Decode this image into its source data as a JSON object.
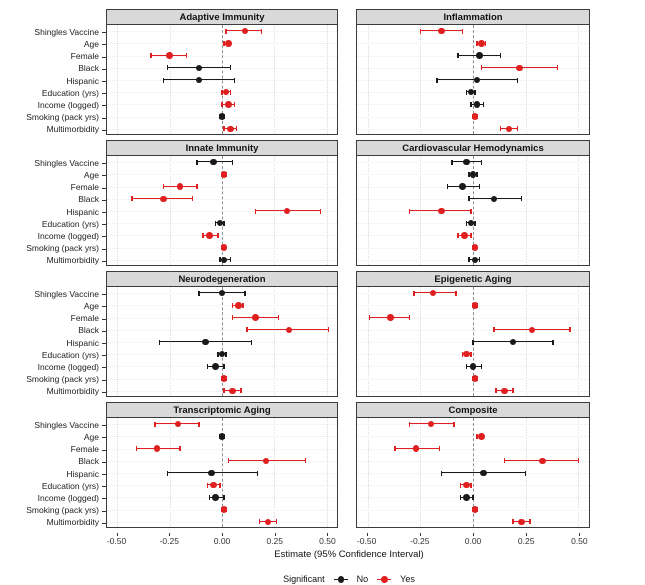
{
  "chart_data": {
    "type": "scatter",
    "subtype": "faceted-forest-plot-pointrange",
    "facet_grid": {
      "rows": 4,
      "cols": 2
    },
    "xlabel": "Estimate (95% Confidence Interval)",
    "x_ticks": [
      -0.5,
      -0.25,
      0.0,
      0.25,
      0.5
    ],
    "x_tick_labels": [
      "-0.50",
      "-0.25",
      "0.00",
      "0.25",
      "0.50"
    ],
    "xlim": [
      -0.55,
      0.55
    ],
    "zero_reference_line": 0,
    "grid": true,
    "legend": {
      "position": "bottom",
      "title": "Significant",
      "items": [
        {
          "label": "No",
          "color": "#1a1a1a"
        },
        {
          "label": "Yes",
          "color": "#e02020"
        }
      ]
    },
    "colors": {
      "significant_no": "#1a1a1a",
      "significant_yes": "#e02020",
      "panel_header_bg": "#d9d9d9",
      "panel_border": "#3c3c3c",
      "zero_line": "#8f8f8f",
      "grid_line": "#dcdcdc"
    },
    "predictors": [
      "Shingles Vaccine",
      "Age",
      "Female",
      "Black",
      "Hispanic",
      "Education (yrs)",
      "Income (logged)",
      "Smoking (pack yrs)",
      "Multimorbidity"
    ],
    "panels": [
      {
        "title": "Adaptive Immunity",
        "points": [
          {
            "predictor": "Shingles Vaccine",
            "estimate": 0.11,
            "lo": 0.02,
            "hi": 0.19,
            "significant": "Yes"
          },
          {
            "predictor": "Age",
            "estimate": 0.03,
            "lo": 0.01,
            "hi": 0.04,
            "significant": "Yes"
          },
          {
            "predictor": "Female",
            "estimate": -0.25,
            "lo": -0.34,
            "hi": -0.17,
            "significant": "Yes"
          },
          {
            "predictor": "Black",
            "estimate": -0.11,
            "lo": -0.26,
            "hi": 0.04,
            "significant": "No"
          },
          {
            "predictor": "Hispanic",
            "estimate": -0.11,
            "lo": -0.28,
            "hi": 0.06,
            "significant": "No"
          },
          {
            "predictor": "Education (yrs)",
            "estimate": 0.02,
            "lo": 0.0,
            "hi": 0.04,
            "significant": "Yes"
          },
          {
            "predictor": "Income (logged)",
            "estimate": 0.03,
            "lo": 0.0,
            "hi": 0.06,
            "significant": "Yes"
          },
          {
            "predictor": "Smoking (pack yrs)",
            "estimate": 0.0,
            "lo": -0.01,
            "hi": 0.01,
            "significant": "No"
          },
          {
            "predictor": "Multimorbidity",
            "estimate": 0.04,
            "lo": 0.01,
            "hi": 0.07,
            "significant": "Yes"
          }
        ]
      },
      {
        "title": "Inflammation",
        "points": [
          {
            "predictor": "Shingles Vaccine",
            "estimate": -0.15,
            "lo": -0.25,
            "hi": -0.05,
            "significant": "Yes"
          },
          {
            "predictor": "Age",
            "estimate": 0.04,
            "lo": 0.02,
            "hi": 0.06,
            "significant": "Yes"
          },
          {
            "predictor": "Female",
            "estimate": 0.03,
            "lo": -0.07,
            "hi": 0.13,
            "significant": "No"
          },
          {
            "predictor": "Black",
            "estimate": 0.22,
            "lo": 0.04,
            "hi": 0.4,
            "significant": "Yes"
          },
          {
            "predictor": "Hispanic",
            "estimate": 0.02,
            "lo": -0.17,
            "hi": 0.21,
            "significant": "No"
          },
          {
            "predictor": "Education (yrs)",
            "estimate": -0.01,
            "lo": -0.03,
            "hi": 0.01,
            "significant": "No"
          },
          {
            "predictor": "Income (logged)",
            "estimate": 0.02,
            "lo": -0.01,
            "hi": 0.05,
            "significant": "No"
          },
          {
            "predictor": "Smoking (pack yrs)",
            "estimate": 0.01,
            "lo": 0.0,
            "hi": 0.02,
            "significant": "Yes"
          },
          {
            "predictor": "Multimorbidity",
            "estimate": 0.17,
            "lo": 0.13,
            "hi": 0.21,
            "significant": "Yes"
          }
        ]
      },
      {
        "title": "Innate Immunity",
        "points": [
          {
            "predictor": "Shingles Vaccine",
            "estimate": -0.04,
            "lo": -0.12,
            "hi": 0.05,
            "significant": "No"
          },
          {
            "predictor": "Age",
            "estimate": 0.01,
            "lo": 0.0,
            "hi": 0.02,
            "significant": "Yes"
          },
          {
            "predictor": "Female",
            "estimate": -0.2,
            "lo": -0.28,
            "hi": -0.12,
            "significant": "Yes"
          },
          {
            "predictor": "Black",
            "estimate": -0.28,
            "lo": -0.43,
            "hi": -0.14,
            "significant": "Yes"
          },
          {
            "predictor": "Hispanic",
            "estimate": 0.31,
            "lo": 0.16,
            "hi": 0.47,
            "significant": "Yes"
          },
          {
            "predictor": "Education (yrs)",
            "estimate": -0.01,
            "lo": -0.03,
            "hi": 0.01,
            "significant": "No"
          },
          {
            "predictor": "Income (logged)",
            "estimate": -0.06,
            "lo": -0.09,
            "hi": -0.02,
            "significant": "Yes"
          },
          {
            "predictor": "Smoking (pack yrs)",
            "estimate": 0.01,
            "lo": 0.0,
            "hi": 0.01,
            "significant": "Yes"
          },
          {
            "predictor": "Multimorbidity",
            "estimate": 0.01,
            "lo": -0.01,
            "hi": 0.04,
            "significant": "No"
          }
        ]
      },
      {
        "title": "Cardiovascular Hemodynamics",
        "points": [
          {
            "predictor": "Shingles Vaccine",
            "estimate": -0.03,
            "lo": -0.1,
            "hi": 0.04,
            "significant": "No"
          },
          {
            "predictor": "Age",
            "estimate": 0.0,
            "lo": -0.02,
            "hi": 0.02,
            "significant": "No"
          },
          {
            "predictor": "Female",
            "estimate": -0.05,
            "lo": -0.12,
            "hi": 0.03,
            "significant": "No"
          },
          {
            "predictor": "Black",
            "estimate": 0.1,
            "lo": -0.02,
            "hi": 0.23,
            "significant": "No"
          },
          {
            "predictor": "Hispanic",
            "estimate": -0.15,
            "lo": -0.3,
            "hi": -0.01,
            "significant": "Yes"
          },
          {
            "predictor": "Education (yrs)",
            "estimate": -0.01,
            "lo": -0.03,
            "hi": 0.01,
            "significant": "No"
          },
          {
            "predictor": "Income (logged)",
            "estimate": -0.04,
            "lo": -0.07,
            "hi": -0.01,
            "significant": "Yes"
          },
          {
            "predictor": "Smoking (pack yrs)",
            "estimate": 0.01,
            "lo": 0.0,
            "hi": 0.01,
            "significant": "Yes"
          },
          {
            "predictor": "Multimorbidity",
            "estimate": 0.01,
            "lo": -0.02,
            "hi": 0.03,
            "significant": "No"
          }
        ]
      },
      {
        "title": "Neurodegeneration",
        "points": [
          {
            "predictor": "Shingles Vaccine",
            "estimate": 0.0,
            "lo": -0.11,
            "hi": 0.11,
            "significant": "No"
          },
          {
            "predictor": "Age",
            "estimate": 0.08,
            "lo": 0.05,
            "hi": 0.1,
            "significant": "Yes"
          },
          {
            "predictor": "Female",
            "estimate": 0.16,
            "lo": 0.05,
            "hi": 0.27,
            "significant": "Yes"
          },
          {
            "predictor": "Black",
            "estimate": 0.32,
            "lo": 0.12,
            "hi": 0.51,
            "significant": "Yes"
          },
          {
            "predictor": "Hispanic",
            "estimate": -0.08,
            "lo": -0.3,
            "hi": 0.14,
            "significant": "No"
          },
          {
            "predictor": "Education (yrs)",
            "estimate": 0.0,
            "lo": -0.02,
            "hi": 0.02,
            "significant": "No"
          },
          {
            "predictor": "Income (logged)",
            "estimate": -0.03,
            "lo": -0.07,
            "hi": 0.01,
            "significant": "No"
          },
          {
            "predictor": "Smoking (pack yrs)",
            "estimate": 0.01,
            "lo": 0.0,
            "hi": 0.02,
            "significant": "Yes"
          },
          {
            "predictor": "Multimorbidity",
            "estimate": 0.05,
            "lo": 0.01,
            "hi": 0.09,
            "significant": "Yes"
          }
        ]
      },
      {
        "title": "Epigenetic Aging",
        "points": [
          {
            "predictor": "Shingles Vaccine",
            "estimate": -0.19,
            "lo": -0.28,
            "hi": -0.08,
            "significant": "Yes"
          },
          {
            "predictor": "Age",
            "estimate": 0.01,
            "lo": 0.0,
            "hi": 0.02,
            "significant": "Yes"
          },
          {
            "predictor": "Female",
            "estimate": -0.39,
            "lo": -0.49,
            "hi": -0.3,
            "significant": "Yes"
          },
          {
            "predictor": "Black",
            "estimate": 0.28,
            "lo": 0.1,
            "hi": 0.46,
            "significant": "Yes"
          },
          {
            "predictor": "Hispanic",
            "estimate": 0.19,
            "lo": 0.0,
            "hi": 0.38,
            "significant": "No"
          },
          {
            "predictor": "Education (yrs)",
            "estimate": -0.03,
            "lo": -0.05,
            "hi": -0.01,
            "significant": "Yes"
          },
          {
            "predictor": "Income (logged)",
            "estimate": 0.0,
            "lo": -0.03,
            "hi": 0.04,
            "significant": "No"
          },
          {
            "predictor": "Smoking (pack yrs)",
            "estimate": 0.01,
            "lo": 0.0,
            "hi": 0.02,
            "significant": "Yes"
          },
          {
            "predictor": "Multimorbidity",
            "estimate": 0.15,
            "lo": 0.11,
            "hi": 0.19,
            "significant": "Yes"
          }
        ]
      },
      {
        "title": "Transcriptomic Aging",
        "points": [
          {
            "predictor": "Shingles Vaccine",
            "estimate": -0.21,
            "lo": -0.32,
            "hi": -0.11,
            "significant": "Yes"
          },
          {
            "predictor": "Age",
            "estimate": 0.0,
            "lo": -0.01,
            "hi": 0.01,
            "significant": "No"
          },
          {
            "predictor": "Female",
            "estimate": -0.31,
            "lo": -0.41,
            "hi": -0.2,
            "significant": "Yes"
          },
          {
            "predictor": "Black",
            "estimate": 0.21,
            "lo": 0.03,
            "hi": 0.4,
            "significant": "Yes"
          },
          {
            "predictor": "Hispanic",
            "estimate": -0.05,
            "lo": -0.26,
            "hi": 0.17,
            "significant": "No"
          },
          {
            "predictor": "Education (yrs)",
            "estimate": -0.04,
            "lo": -0.07,
            "hi": -0.01,
            "significant": "Yes"
          },
          {
            "predictor": "Income (logged)",
            "estimate": -0.03,
            "lo": -0.06,
            "hi": 0.01,
            "significant": "No"
          },
          {
            "predictor": "Smoking (pack yrs)",
            "estimate": 0.01,
            "lo": 0.0,
            "hi": 0.02,
            "significant": "Yes"
          },
          {
            "predictor": "Multimorbidity",
            "estimate": 0.22,
            "lo": 0.18,
            "hi": 0.26,
            "significant": "Yes"
          }
        ]
      },
      {
        "title": "Composite",
        "points": [
          {
            "predictor": "Shingles Vaccine",
            "estimate": -0.2,
            "lo": -0.3,
            "hi": -0.09,
            "significant": "Yes"
          },
          {
            "predictor": "Age",
            "estimate": 0.04,
            "lo": 0.02,
            "hi": 0.05,
            "significant": "Yes"
          },
          {
            "predictor": "Female",
            "estimate": -0.27,
            "lo": -0.37,
            "hi": -0.16,
            "significant": "Yes"
          },
          {
            "predictor": "Black",
            "estimate": 0.33,
            "lo": 0.15,
            "hi": 0.5,
            "significant": "Yes"
          },
          {
            "predictor": "Hispanic",
            "estimate": 0.05,
            "lo": -0.15,
            "hi": 0.25,
            "significant": "No"
          },
          {
            "predictor": "Education (yrs)",
            "estimate": -0.03,
            "lo": -0.06,
            "hi": -0.01,
            "significant": "Yes"
          },
          {
            "predictor": "Income (logged)",
            "estimate": -0.03,
            "lo": -0.06,
            "hi": 0.0,
            "significant": "No"
          },
          {
            "predictor": "Smoking (pack yrs)",
            "estimate": 0.01,
            "lo": 0.0,
            "hi": 0.02,
            "significant": "Yes"
          },
          {
            "predictor": "Multimorbidity",
            "estimate": 0.23,
            "lo": 0.19,
            "hi": 0.27,
            "significant": "Yes"
          }
        ]
      }
    ]
  }
}
